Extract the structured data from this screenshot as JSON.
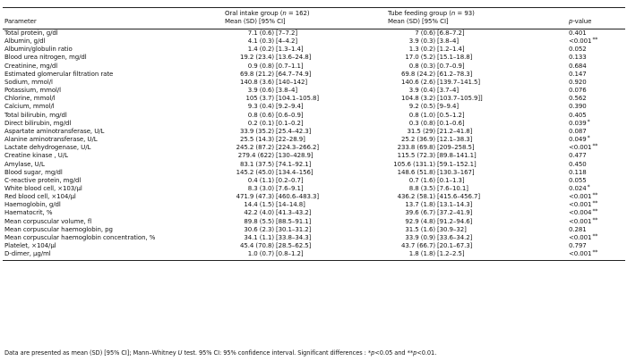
{
  "table": {
    "headers": {
      "parameter": "Parameter",
      "oral_line1": "Oral intake group (n = 162)",
      "oral_line2": "Mean (SD) [95% CI]",
      "tube_line1": "Tube feeding group (n = 93)",
      "tube_line2": "Mean (SD) [95% CI]",
      "pvalue": "p-value"
    },
    "rows": [
      {
        "parameter": "Total protein, g/dl",
        "oral_mean": "7.1 (0.6)",
        "oral_ci": "[7–7.2]",
        "tube_mean": "7 (0.6)",
        "tube_ci": "[6.8–7.2]",
        "p": "0.401",
        "sig": ""
      },
      {
        "parameter": "Albumin, g/dl",
        "oral_mean": "4.1 (0.3)",
        "oral_ci": "[4–4.2]",
        "tube_mean": "3.9 (0.3)",
        "tube_ci": "[3.8–4]",
        "p": "<0.001",
        "sig": "**"
      },
      {
        "parameter": "Albumin/globulin ratio",
        "oral_mean": "1.4 (0.2)",
        "oral_ci": "[1.3–1.4]",
        "tube_mean": "1.3 (0.2)",
        "tube_ci": "[1.2–1.4]",
        "p": "0.052",
        "sig": ""
      },
      {
        "parameter": "Blood urea nitrogen, mg/dl",
        "oral_mean": "19.2 (23.4)",
        "oral_ci": "[13.6–24.8]",
        "tube_mean": "17.0 (5.2)",
        "tube_ci": "[15.1–18.8]",
        "p": "0.133",
        "sig": ""
      },
      {
        "parameter": "Creatinine, mg/dl",
        "oral_mean": "0.9 (0.8)",
        "oral_ci": "[0.7–1.1]",
        "tube_mean": "0.8 (0.3)",
        "tube_ci": "[0.7–0.9]",
        "p": "0.684",
        "sig": ""
      },
      {
        "parameter": "Estimated glomerular filtration rate",
        "oral_mean": "69.8 (21.2)",
        "oral_ci": "[64.7–74.9]",
        "tube_mean": "69.8 (24.2)",
        "tube_ci": "[61.2–78.3]",
        "p": "0.147",
        "sig": ""
      },
      {
        "parameter": "Sodium, mmol/l",
        "oral_mean": "140.8 (3.6)",
        "oral_ci": "[140–142]",
        "tube_mean": "140.6 (2.6)",
        "tube_ci": "[139.7–141.5]",
        "p": "0.920",
        "sig": ""
      },
      {
        "parameter": "Potassium, mmol/l",
        "oral_mean": "3.9 (0.6)",
        "oral_ci": "[3.8–4]",
        "tube_mean": "3.9 (0.4)",
        "tube_ci": "[3.7–4]",
        "p": "0.076",
        "sig": ""
      },
      {
        "parameter": "Chlorine, mmol/l",
        "oral_mean": "105 (3.7)",
        "oral_ci": "[104.1–105.8]",
        "tube_mean": "104.8 (3.2)",
        "tube_ci": "[103.7–105.9]]",
        "p": "0.562",
        "sig": ""
      },
      {
        "parameter": "Calcium, mmol/l",
        "oral_mean": "9.3 (0.4)",
        "oral_ci": "[9.2–9.4]",
        "tube_mean": "9.2 (0.5)",
        "tube_ci": "[9–9.4]",
        "p": "0.390",
        "sig": ""
      },
      {
        "parameter": "Total bilirubin, mg/dl",
        "oral_mean": "0.8 (0.6)",
        "oral_ci": "[0.6–0.9]",
        "tube_mean": "0.8 (1.0)",
        "tube_ci": "[0.5–1.2]",
        "p": "0.405",
        "sig": ""
      },
      {
        "parameter": "Direct bilirubin, mg/dl",
        "oral_mean": "0.2 (0.1)",
        "oral_ci": "[0.1–0.2]",
        "tube_mean": "0.3 (0.8)",
        "tube_ci": "[0.1–0.6]",
        "p": "0.039",
        "sig": "*"
      },
      {
        "parameter": "Aspartate aminotransferase, U/L",
        "oral_mean": "33.9 (35.2)",
        "oral_ci": "[25.4–42.3]",
        "tube_mean": "31.5 (29)",
        "tube_ci": "[21.2–41.8]",
        "p": "0.087",
        "sig": ""
      },
      {
        "parameter": "Alanine aminotransferase, U/L",
        "oral_mean": "25.5 (14.3)",
        "oral_ci": "[22–28.9]",
        "tube_mean": "25.2 (36.9)",
        "tube_ci": "[12.1–38.3]",
        "p": "0.049",
        "sig": "*"
      },
      {
        "parameter": "Lactate dehydrogenase, U/L",
        "oral_mean": "245.2 (87.2)",
        "oral_ci": "[224.3–266.2]",
        "tube_mean": "233.8 (69.8)",
        "tube_ci": "[209–258.5]",
        "p": "<0.001",
        "sig": "**"
      },
      {
        "parameter": "Creatine kinase , U/L",
        "oral_mean": "279.4 (622)",
        "oral_ci": "[130–428.9]",
        "tube_mean": "115.5 (72.3)",
        "tube_ci": "[89.8–141.1]",
        "p": "0.477",
        "sig": ""
      },
      {
        "parameter": "Amylase, U/L",
        "oral_mean": "83.1 (37.5)",
        "oral_ci": "[74.1–92.1]",
        "tube_mean": "105.6 (131.1)",
        "tube_ci": "[59.1–152.1]",
        "p": "0.450",
        "sig": ""
      },
      {
        "parameter": "Blood sugar, mg/dl",
        "oral_mean": "145.2 (45.0)",
        "oral_ci": "[134.4–156]",
        "tube_mean": "148.6 (51.8)",
        "tube_ci": "[130.3–167]",
        "p": "0.118",
        "sig": ""
      },
      {
        "parameter": "C-reactive protein, mg/dl",
        "oral_mean": "0.4 (1.1)",
        "oral_ci": "[0.2–0.7]",
        "tube_mean": "0.7 (1.6)",
        "tube_ci": "[0.1–1.3]",
        "p": "0.055",
        "sig": ""
      },
      {
        "parameter": "White blood cell, ×103/µl",
        "oral_mean": "8.3 (3.0)",
        "oral_ci": "[7.6–9.1]",
        "tube_mean": "8.8 (3.5)",
        "tube_ci": "[7.6–10.1]",
        "p": "0.024",
        "sig": "*"
      },
      {
        "parameter": "Red blood cell, ×104/µl",
        "oral_mean": "471.9 (47.3)",
        "oral_ci": "[460.6–483.3]",
        "tube_mean": "436.2 (58.1)",
        "tube_ci": "[415.6–456.7]",
        "p": "<0.001",
        "sig": "**"
      },
      {
        "parameter": "Haemoglobin, g/dl",
        "oral_mean": "14.4 (1.5)",
        "oral_ci": "[14–14.8]",
        "tube_mean": "13.7 (1.8)",
        "tube_ci": "[13.1–14.3]",
        "p": "<0.001",
        "sig": "**"
      },
      {
        "parameter": "Haematocrit, %",
        "oral_mean": "42.2 (4.0)",
        "oral_ci": "[41.3–43.2]",
        "tube_mean": "39.6 (6.7)",
        "tube_ci": "[37.2–41.9]",
        "p": "<0.004",
        "sig": "**"
      },
      {
        "parameter": "Mean corpuscular volume, fl",
        "oral_mean": "89.8 (5.5)",
        "oral_ci": "[88.5–91.1]",
        "tube_mean": "92.9 (4.8)",
        "tube_ci": "[91.2–94.6]",
        "p": "<0.001",
        "sig": "**"
      },
      {
        "parameter": "Mean corpuscular haemoglobin, pg",
        "oral_mean": "30.6 (2.3)",
        "oral_ci": "[30.1–31.2]",
        "tube_mean": "31.5 (1.6)",
        "tube_ci": "[30.9–32]",
        "p": "0.281",
        "sig": ""
      },
      {
        "parameter": "Mean corpuscular haemoglobin concentration, %",
        "oral_mean": "34.1 (1.1)",
        "oral_ci": "[33.8–34.3]",
        "tube_mean": "33.9 (0.9)",
        "tube_ci": "[33.6–34.2]",
        "p": "<0.001",
        "sig": "**"
      },
      {
        "parameter": "Platelet, ×104/µl",
        "oral_mean": "45.4 (70.8)",
        "oral_ci": "[28.5–62.5]",
        "tube_mean": "43.7 (66.7)",
        "tube_ci": "[20.1–67.3]",
        "p": "0.797",
        "sig": ""
      },
      {
        "parameter": "D-dimer, µg/ml",
        "oral_mean": "1.0 (0.7)",
        "oral_ci": "[0.8–1.2]",
        "tube_mean": "1.8 (1.8)",
        "tube_ci": "[1.2–2.5]",
        "p": "<0.001",
        "sig": "**"
      }
    ]
  },
  "footnote": "Data are presented as mean (SD) [95% CI]; Mann–Whitney U test. 95% CI: 95% confidence interval. Significant differences : *p<0.05 and **p<0.01."
}
